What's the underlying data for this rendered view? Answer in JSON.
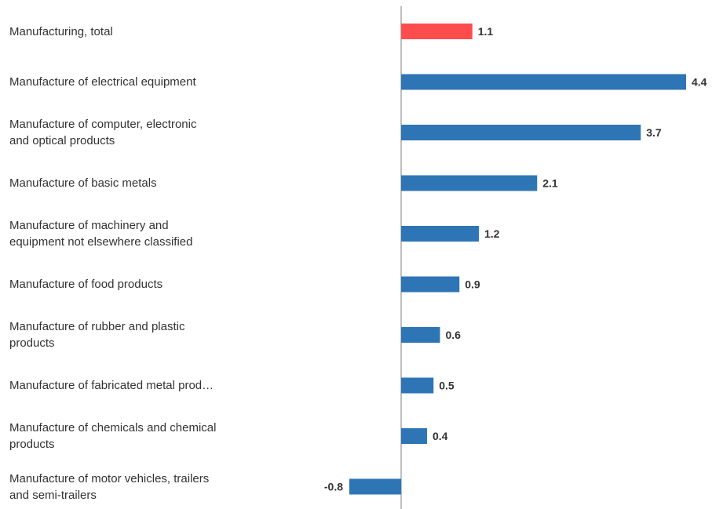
{
  "chart_data": {
    "type": "bar",
    "orientation": "horizontal",
    "categories": [
      "Manufacturing, total",
      "Manufacture of electrical equipment",
      "Manufacture of computer, electronic\nand optical products",
      "Manufacture of basic metals",
      "Manufacture of machinery and\nequipment not elsewhere classified",
      "Manufacture of food products",
      "Manufacture of rubber and plastic\nproducts",
      "Manufacture of fabricated metal prod…",
      "Manufacture of chemicals and chemical\nproducts",
      "Manufacture of motor vehicles, trailers\nand semi-trailers"
    ],
    "values": [
      1.1,
      4.4,
      3.7,
      2.1,
      1.2,
      0.9,
      0.6,
      0.5,
      0.4,
      -0.8
    ],
    "value_labels": [
      "1.1",
      "4.4",
      "3.7",
      "2.1",
      "1.2",
      "0.9",
      "0.6",
      "0.5",
      "0.4",
      "-0.8"
    ],
    "highlight_index": 0,
    "colors": {
      "highlight": "#FF4C4C",
      "default": "#2E75B6",
      "axis": "#AAAAAA"
    },
    "xlim": [
      -0.8,
      4.4
    ],
    "grid": false,
    "legend": "none"
  }
}
